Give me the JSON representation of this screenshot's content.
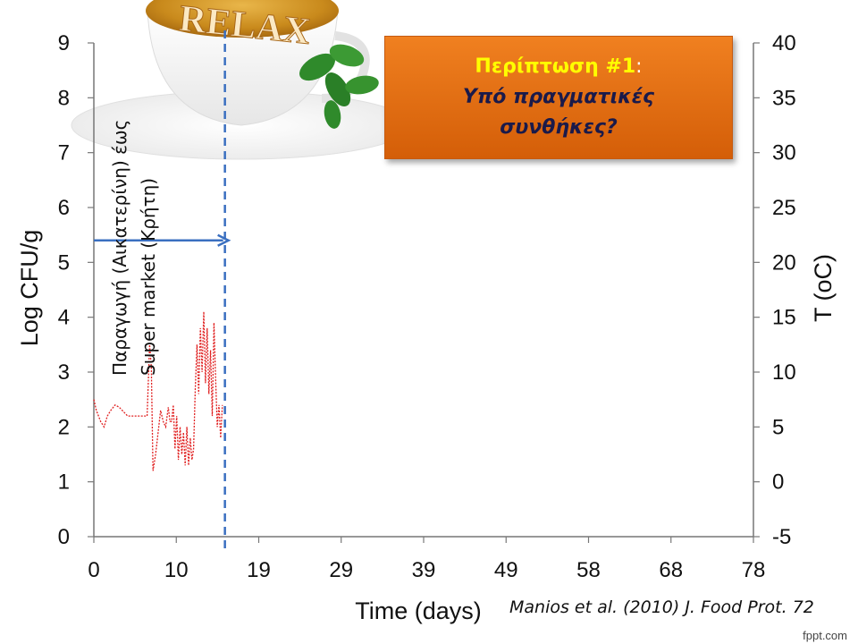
{
  "slide": {
    "callout_title": "Περίπτωση #1",
    "callout_colon": ":",
    "callout_line2": "Υπό πραγματικές",
    "callout_line3": "συνθήκες?",
    "vertical_label_line1": "Παραγωγή (Αικατερίνη) έως",
    "vertical_label_line2": "Super market (Κρήτη)",
    "citation": "Manios et al. (2010) J. Food Prot. 72",
    "footer_brand": "fppt.com",
    "logo_text": "RELAX"
  },
  "chart_data": {
    "type": "line",
    "xlabel": "Time (days)",
    "ylabel_left": "Log CFU/g",
    "ylabel_right": "T (oC)",
    "xlim": [
      0,
      78
    ],
    "ylim_left": [
      0,
      9
    ],
    "ylim_right": [
      -5,
      40
    ],
    "x_ticks": [
      0,
      10,
      19,
      29,
      39,
      49,
      58,
      68,
      78
    ],
    "y_ticks_left": [
      0,
      1,
      2,
      3,
      4,
      5,
      6,
      7,
      8,
      9
    ],
    "y_ticks_right": [
      -5,
      0,
      5,
      10,
      15,
      20,
      25,
      30,
      35,
      40
    ],
    "grid": false,
    "colors": {
      "temperature": "#e02020",
      "marker": "#3a6fc0",
      "callout": "#e8741a"
    },
    "series": [
      {
        "axis": "right",
        "style": "dotted",
        "x": [
          0,
          0.3,
          0.8,
          1.2,
          1.6,
          2.0,
          2.5,
          3.0,
          4.0,
          5.0,
          6.0,
          6.3,
          6.6,
          6.8,
          7.0,
          7.3,
          7.6,
          7.9,
          8.2,
          8.5,
          8.8,
          9.0,
          9.2,
          9.4,
          9.6,
          9.8,
          10.0,
          10.2,
          10.4,
          10.6,
          10.8,
          11.0,
          11.2,
          11.4,
          11.6,
          11.8,
          12.0,
          12.2,
          12.4,
          12.6,
          12.8,
          13.0,
          13.2,
          13.4,
          13.6,
          13.8,
          14.0,
          14.2,
          14.4,
          14.6,
          14.8,
          15.0,
          15.2
        ],
        "y": [
          7.5,
          6.5,
          5.5,
          5.0,
          6.0,
          6.5,
          7.0,
          6.8,
          6.0,
          6.0,
          6.0,
          6.0,
          12.5,
          10.5,
          1.0,
          2.5,
          4.5,
          6.5,
          5.5,
          5.0,
          6.8,
          5.5,
          5.5,
          7.0,
          3.0,
          6.0,
          2.0,
          5.0,
          2.5,
          4.5,
          1.5,
          5.0,
          1.5,
          4.0,
          2.0,
          3.0,
          8.5,
          12.5,
          8.0,
          14.0,
          10.0,
          15.5,
          9.0,
          14.0,
          8.0,
          12.0,
          6.0,
          14.5,
          9.5,
          5.0,
          7.0,
          4.0,
          7.0
        ]
      }
    ],
    "vertical_marker_x": 15.5,
    "arrow": {
      "x_from": 0,
      "x_to": 15.5,
      "y_left": 5.4
    }
  }
}
